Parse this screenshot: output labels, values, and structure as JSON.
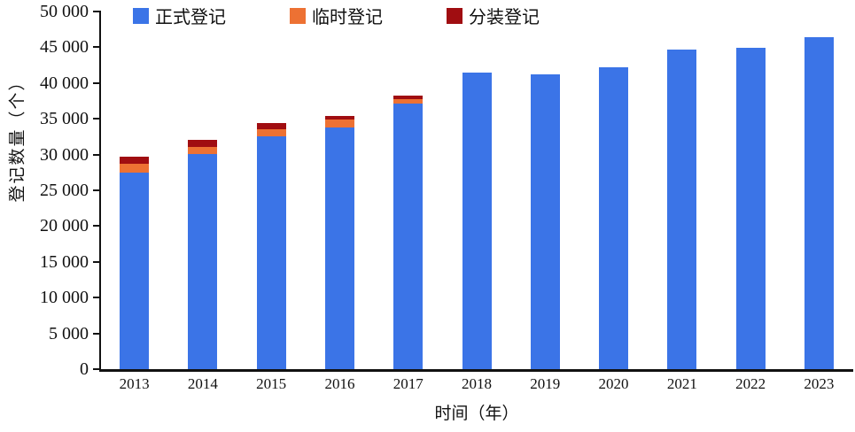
{
  "chart_data": {
    "type": "bar",
    "stacked": true,
    "title": "",
    "xlabel": "时间（年）",
    "ylabel": "登记数量（个）",
    "ylim": [
      0,
      50000
    ],
    "grid": false,
    "legend_position": "top",
    "categories": [
      "2013",
      "2014",
      "2015",
      "2016",
      "2017",
      "2018",
      "2019",
      "2020",
      "2021",
      "2022",
      "2023"
    ],
    "series": [
      {
        "name": "正式登记",
        "color": "#3B74E7",
        "values": [
          27500,
          30100,
          32500,
          33800,
          37100,
          41400,
          41200,
          42200,
          44700,
          44900,
          46400
        ]
      },
      {
        "name": "临时登记",
        "color": "#ED7133",
        "values": [
          1250,
          1000,
          1000,
          1100,
          600,
          0,
          0,
          0,
          0,
          0,
          0
        ]
      },
      {
        "name": "分装登记",
        "color": "#A00D11",
        "values": [
          950,
          900,
          900,
          550,
          500,
          0,
          0,
          0,
          0,
          0,
          0
        ]
      }
    ],
    "y_ticks": [
      {
        "value": 0,
        "label": "0"
      },
      {
        "value": 5000,
        "label": "5 000"
      },
      {
        "value": 10000,
        "label": "10 000"
      },
      {
        "value": 15000,
        "label": "15 000"
      },
      {
        "value": 20000,
        "label": "20 000"
      },
      {
        "value": 25000,
        "label": "25 000"
      },
      {
        "value": 30000,
        "label": "30 000"
      },
      {
        "value": 35000,
        "label": "35 000"
      },
      {
        "value": 40000,
        "label": "40 000"
      },
      {
        "value": 45000,
        "label": "45 000"
      },
      {
        "value": 50000,
        "label": "50 000"
      }
    ],
    "axis_color": "#111111",
    "background_color": "#ffffff"
  }
}
